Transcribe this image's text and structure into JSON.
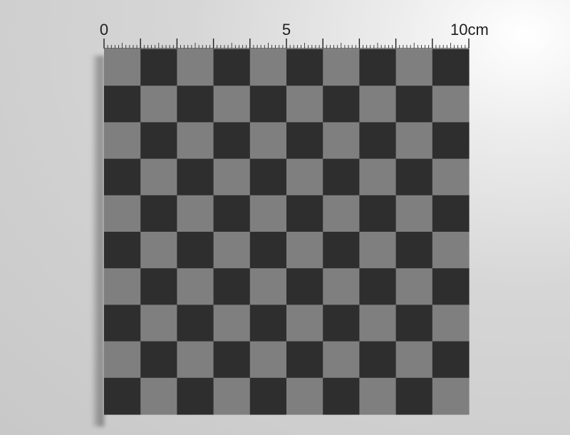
{
  "ruler": {
    "labels": [
      "0",
      "5",
      "10cm"
    ],
    "major_ticks_cm": [
      0,
      1,
      2,
      3,
      4,
      5,
      6,
      7,
      8,
      9,
      10
    ],
    "minor_ticks_per_cm": 10
  },
  "board": {
    "rows": 10,
    "cols": 10,
    "dark_color": "#2e2e2e",
    "light_color": "#7f7f7f",
    "top_left_is_light": true
  }
}
